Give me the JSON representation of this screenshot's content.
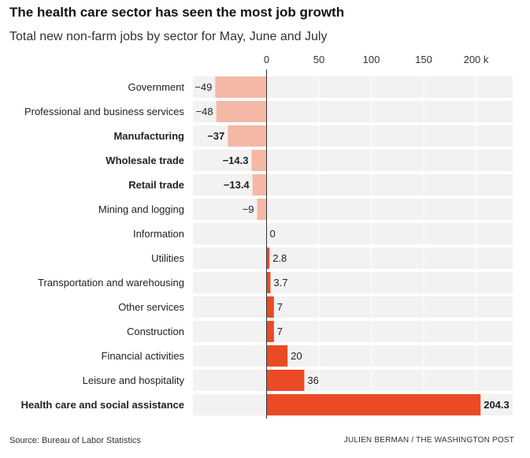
{
  "header": {
    "title": "The health care sector has seen the most job growth",
    "subtitle": "Total new non-farm jobs by sector for May, June and July"
  },
  "footer": {
    "source": "Source: Bureau of Labor Statistics",
    "credit": "JULIEN BERMAN / THE WASHINGTON POST"
  },
  "colors": {
    "positive": "#ea4b24",
    "negative": "#f4b9a6",
    "row_bg": "#f2f2f2",
    "gridline": "#ffffff",
    "zero_line": "#333333"
  },
  "chart_data": {
    "type": "bar",
    "orientation": "horizontal",
    "title": "The health care sector has seen the most job growth",
    "subtitle": "Total new non-farm jobs by sector for May, June and July",
    "xlabel": "",
    "ylabel": "",
    "x_ticks": [
      0,
      50,
      100,
      150,
      200
    ],
    "x_tick_labels": [
      "0",
      "50",
      "100",
      "150",
      "200 k"
    ],
    "xlim": [
      -50,
      232
    ],
    "grid": true,
    "categories": [
      "Government",
      "Professional and business services",
      "Manufacturing",
      "Wholesale trade",
      "Retail trade",
      "Mining and logging",
      "Information",
      "Utilities",
      "Transportation and warehousing",
      "Other services",
      "Construction",
      "Financial activities",
      "Leisure and hospitality",
      "Health care and social assistance"
    ],
    "values": [
      -49,
      -48,
      -37,
      -14.3,
      -13.4,
      -9,
      0,
      2.8,
      3.7,
      7,
      7,
      20,
      36,
      204.3
    ],
    "value_labels": [
      "−49",
      "−48",
      "−37",
      "−14.3",
      "−13.4",
      "−9",
      "0",
      "2.8",
      "3.7",
      "7",
      "7",
      "20",
      "36",
      "204.3"
    ],
    "bold_categories": [
      "Manufacturing",
      "Wholesale trade",
      "Retail trade",
      "Health care and social assistance"
    ]
  }
}
